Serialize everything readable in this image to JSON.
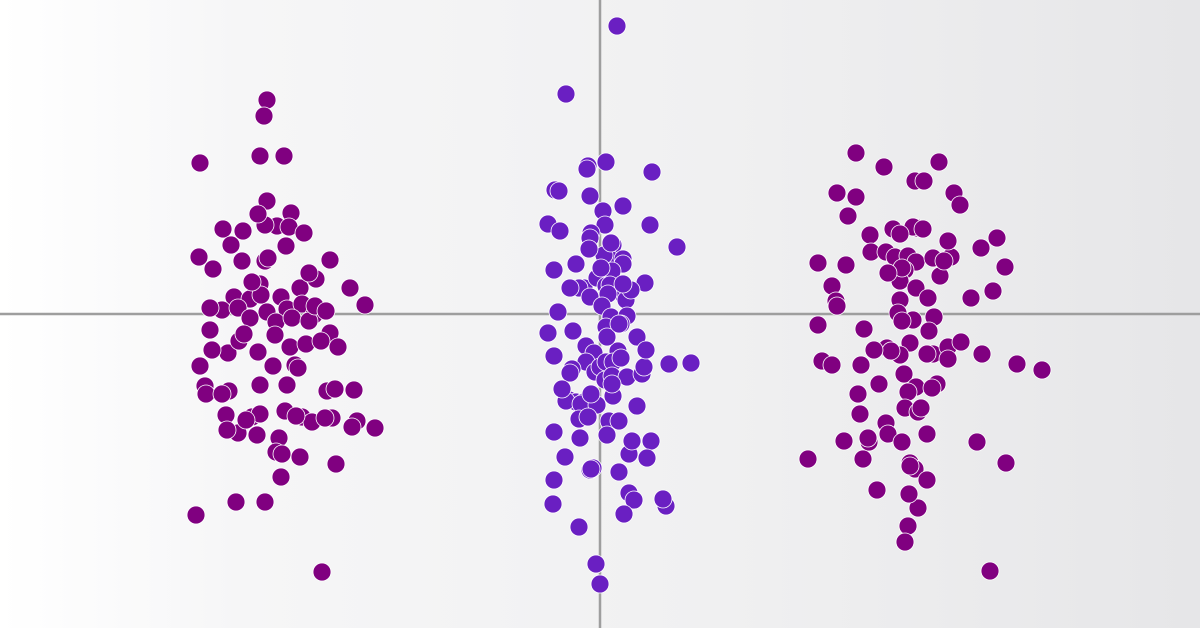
{
  "chart_data": {
    "type": "scatter",
    "title": "",
    "xlabel": "",
    "ylabel": "",
    "xlim": [
      -6,
      6
    ],
    "ylim": [
      -3.14,
      3.14
    ],
    "grid": false,
    "legend": "none",
    "axes_cross_at": [
      0,
      0
    ],
    "series": [
      {
        "color": "#800080",
        "points": [
          [
            -3.33,
            2.14
          ],
          [
            -3.36,
            1.98
          ],
          [
            -3.4,
            1.58
          ],
          [
            -3.16,
            1.58
          ],
          [
            -4.0,
            1.51
          ],
          [
            -3.33,
            1.13
          ],
          [
            -3.09,
            1.01
          ],
          [
            -3.23,
            0.88
          ],
          [
            -3.77,
            0.85
          ],
          [
            -3.57,
            0.83
          ],
          [
            -3.11,
            0.87
          ],
          [
            -2.96,
            0.81
          ],
          [
            -4.01,
            0.57
          ],
          [
            -3.87,
            0.45
          ],
          [
            -3.58,
            0.53
          ],
          [
            -3.35,
            0.53
          ],
          [
            -3.32,
            0.56
          ],
          [
            -2.7,
            0.54
          ],
          [
            -2.84,
            0.35
          ],
          [
            -3.4,
            0.3
          ],
          [
            -3.66,
            0.17
          ],
          [
            -3.5,
            0.15
          ],
          [
            -3.39,
            0.19
          ],
          [
            -3.19,
            0.17
          ],
          [
            -3.0,
            0.26
          ],
          [
            -2.5,
            0.26
          ],
          [
            -3.78,
            0.04
          ],
          [
            -3.62,
            0.06
          ],
          [
            -3.33,
            0.02
          ],
          [
            -3.13,
            0.05
          ],
          [
            -2.98,
            0.1
          ],
          [
            -2.86,
            -0.01
          ],
          [
            -2.35,
            0.09
          ],
          [
            -3.9,
            0.06
          ],
          [
            -3.5,
            -0.04
          ],
          [
            -3.24,
            -0.08
          ],
          [
            -3.08,
            -0.04
          ],
          [
            -2.91,
            -0.07
          ],
          [
            -2.7,
            -0.19
          ],
          [
            -2.85,
            0.08
          ],
          [
            -3.72,
            -0.39
          ],
          [
            -3.61,
            -0.27
          ],
          [
            -3.42,
            -0.38
          ],
          [
            -3.25,
            -0.21
          ],
          [
            -3.1,
            -0.33
          ],
          [
            -2.94,
            -0.3
          ],
          [
            -2.79,
            -0.27
          ],
          [
            -3.56,
            -0.2
          ],
          [
            -3.88,
            -0.36
          ],
          [
            -2.62,
            -0.33
          ],
          [
            -4.0,
            -0.52
          ],
          [
            -3.95,
            -0.72
          ],
          [
            -3.71,
            -0.77
          ],
          [
            -3.4,
            -0.71
          ],
          [
            -3.13,
            -0.71
          ],
          [
            -2.73,
            -0.77
          ],
          [
            -2.46,
            -0.76
          ],
          [
            -3.05,
            -0.51
          ],
          [
            -3.27,
            -0.52
          ],
          [
            -3.94,
            -0.8
          ],
          [
            -3.74,
            -1.01
          ],
          [
            -3.48,
            -1.03
          ],
          [
            -3.15,
            -0.97
          ],
          [
            -2.98,
            -1.03
          ],
          [
            -2.88,
            -1.08
          ],
          [
            -2.68,
            -1.04
          ],
          [
            -2.43,
            -1.07
          ],
          [
            -2.25,
            -1.14
          ],
          [
            -2.48,
            -1.13
          ],
          [
            -3.4,
            -1.0
          ],
          [
            -3.62,
            -1.19
          ],
          [
            -3.43,
            -1.21
          ],
          [
            -3.21,
            -1.24
          ],
          [
            -3.24,
            -1.38
          ],
          [
            -3.0,
            -1.43
          ],
          [
            -2.64,
            -1.5
          ],
          [
            -3.18,
            -1.4
          ],
          [
            -3.73,
            -1.16
          ],
          [
            -3.04,
            -1.02
          ],
          [
            -3.54,
            -1.06
          ],
          [
            -3.35,
            -1.88
          ],
          [
            -3.64,
            -1.88
          ],
          [
            -4.04,
            -2.01
          ],
          [
            -2.78,
            -2.58
          ],
          [
            -3.19,
            -1.63
          ],
          [
            -2.75,
            -1.04
          ],
          [
            -3.35,
            0.89
          ],
          [
            -3.69,
            0.69
          ],
          [
            -2.91,
            0.41
          ],
          [
            -2.74,
            0.03
          ],
          [
            -3.48,
            0.32
          ],
          [
            -3.14,
            0.68
          ],
          [
            -3.9,
            -0.16
          ],
          [
            -3.42,
            1.0
          ],
          [
            -3.02,
            -0.54
          ],
          [
            -3.78,
            -0.8
          ],
          [
            -2.65,
            -0.75
          ]
        ]
      },
      {
        "color": "#6a1fc2",
        "points": [
          [
            0.17,
            2.88
          ],
          [
            -0.34,
            2.2
          ],
          [
            -0.12,
            1.48
          ],
          [
            -0.13,
            1.45
          ],
          [
            0.06,
            1.52
          ],
          [
            -0.45,
            1.24
          ],
          [
            -0.1,
            1.18
          ],
          [
            0.23,
            1.08
          ],
          [
            -0.52,
            0.9
          ],
          [
            -0.4,
            0.83
          ],
          [
            0.03,
            1.03
          ],
          [
            0.05,
            0.89
          ],
          [
            -0.09,
            0.81
          ],
          [
            -0.1,
            0.76
          ],
          [
            0.13,
            0.69
          ],
          [
            -0.24,
            0.5
          ],
          [
            -0.46,
            0.44
          ],
          [
            0.1,
            0.55
          ],
          [
            0.23,
            0.55
          ],
          [
            0.23,
            0.5
          ],
          [
            0.04,
            0.59
          ],
          [
            0.12,
            0.43
          ],
          [
            -0.16,
            0.26
          ],
          [
            -0.21,
            0.26
          ],
          [
            -0.3,
            0.26
          ],
          [
            -0.1,
            0.17
          ],
          [
            -0.03,
            0.36
          ],
          [
            0.06,
            0.28
          ],
          [
            0.1,
            0.29
          ],
          [
            0.24,
            0.18
          ],
          [
            0.26,
            0.14
          ],
          [
            0.45,
            0.31
          ],
          [
            -0.42,
            0.02
          ],
          [
            0.08,
            0.2
          ],
          [
            0.02,
            0.08
          ],
          [
            0.11,
            -0.03
          ],
          [
            0.27,
            -0.02
          ],
          [
            0.06,
            -0.13
          ],
          [
            0.21,
            -0.1
          ],
          [
            -0.27,
            -0.17
          ],
          [
            0.37,
            -0.23
          ],
          [
            -0.46,
            -0.42
          ],
          [
            -0.14,
            -0.32
          ],
          [
            0.18,
            -0.37
          ],
          [
            0.07,
            -0.23
          ],
          [
            -0.06,
            -0.39
          ],
          [
            -0.14,
            -0.48
          ],
          [
            -0.28,
            -0.55
          ],
          [
            -0.3,
            -0.59
          ],
          [
            -0.05,
            -0.58
          ],
          [
            -0.0,
            -0.53
          ],
          [
            0.06,
            -0.48
          ],
          [
            0.13,
            -0.48
          ],
          [
            0.21,
            -0.44
          ],
          [
            -0.31,
            -0.86
          ],
          [
            -0.24,
            -0.88
          ],
          [
            -0.34,
            -0.87
          ],
          [
            -0.16,
            -0.88
          ],
          [
            0.05,
            -0.66
          ],
          [
            0.12,
            -0.62
          ],
          [
            0.27,
            -0.63
          ],
          [
            0.42,
            -0.6
          ],
          [
            -0.19,
            -0.9
          ],
          [
            -0.03,
            -0.91
          ],
          [
            0.13,
            -0.82
          ],
          [
            -0.21,
            -1.05
          ],
          [
            -0.12,
            -1.03
          ],
          [
            0.09,
            -1.07
          ],
          [
            0.19,
            -1.07
          ],
          [
            -0.46,
            -1.18
          ],
          [
            0.07,
            -1.21
          ],
          [
            0.29,
            -1.4
          ],
          [
            0.32,
            -1.27
          ],
          [
            0.51,
            -1.27
          ],
          [
            0.47,
            -1.44
          ],
          [
            -0.1,
            -1.56
          ],
          [
            -0.07,
            -1.54
          ],
          [
            0.29,
            -1.79
          ],
          [
            0.19,
            -1.58
          ],
          [
            -0.46,
            -1.66
          ],
          [
            -0.35,
            -1.43
          ],
          [
            -0.2,
            -1.24
          ],
          [
            0.34,
            -1.86
          ],
          [
            0.66,
            -1.92
          ],
          [
            0.37,
            -0.92
          ],
          [
            0.44,
            -0.53
          ],
          [
            0.01,
            0.46
          ],
          [
            0.31,
            0.24
          ],
          [
            -0.11,
            0.65
          ],
          [
            -0.38,
            -0.75
          ],
          [
            0.24,
            -2.0
          ],
          [
            0.63,
            -1.85
          ],
          [
            -0.21,
            -2.13
          ],
          [
            0.0,
            -2.7
          ],
          [
            -0.04,
            -2.5
          ],
          [
            -0.47,
            -1.9
          ],
          [
            0.91,
            -0.49
          ],
          [
            0.5,
            0.89
          ],
          [
            0.23,
            0.3
          ],
          [
            0.69,
            -0.5
          ],
          [
            0.46,
            -0.36
          ],
          [
            0.77,
            0.67
          ],
          [
            0.19,
            -0.1
          ],
          [
            -0.41,
            1.23
          ],
          [
            0.12,
            -0.7
          ],
          [
            0.52,
            1.42
          ],
          [
            -0.52,
            -0.19
          ],
          [
            -0.09,
            -1.55
          ],
          [
            0.11,
            0.71
          ],
          [
            -0.09,
            -0.8
          ]
        ]
      },
      {
        "color": "#800080",
        "points": [
          [
            2.56,
            1.61
          ],
          [
            3.39,
            1.52
          ],
          [
            2.84,
            1.47
          ],
          [
            3.15,
            1.33
          ],
          [
            3.24,
            1.33
          ],
          [
            2.37,
            1.21
          ],
          [
            2.56,
            1.17
          ],
          [
            3.54,
            1.21
          ],
          [
            2.48,
            0.98
          ],
          [
            2.7,
            0.79
          ],
          [
            3.17,
            0.86
          ],
          [
            3.97,
            0.76
          ],
          [
            3.13,
            0.87
          ],
          [
            2.93,
            0.85
          ],
          [
            3.81,
            0.66
          ],
          [
            3.23,
            0.85
          ],
          [
            3.0,
            0.8
          ],
          [
            2.71,
            0.62
          ],
          [
            2.86,
            0.62
          ],
          [
            2.95,
            0.57
          ],
          [
            3.08,
            0.58
          ],
          [
            3.16,
            0.52
          ],
          [
            3.33,
            0.56
          ],
          [
            3.51,
            0.57
          ],
          [
            3.4,
            0.38
          ],
          [
            3.05,
            0.44
          ],
          [
            3.0,
            0.33
          ],
          [
            2.46,
            0.49
          ],
          [
            2.18,
            0.51
          ],
          [
            2.32,
            0.28
          ],
          [
            3.48,
            0.73
          ],
          [
            3.44,
            0.53
          ],
          [
            3.02,
            0.46
          ],
          [
            4.05,
            0.47
          ],
          [
            3.93,
            0.23
          ],
          [
            3.16,
            0.26
          ],
          [
            3.28,
            0.16
          ],
          [
            3.0,
            0.14
          ],
          [
            3.71,
            0.16
          ],
          [
            2.36,
            0.13
          ],
          [
            2.18,
            -0.11
          ],
          [
            2.37,
            0.08
          ],
          [
            2.64,
            -0.15
          ],
          [
            3.34,
            -0.03
          ],
          [
            3.13,
            -0.06
          ],
          [
            2.98,
            0.01
          ],
          [
            3.02,
            -0.07
          ],
          [
            3.29,
            -0.17
          ],
          [
            3.1,
            -0.29
          ],
          [
            3.33,
            -0.4
          ],
          [
            2.87,
            -0.34
          ],
          [
            3.27,
            -0.4
          ],
          [
            3.48,
            -0.33
          ],
          [
            3.61,
            -0.28
          ],
          [
            3.82,
            -0.4
          ],
          [
            3.0,
            -0.41
          ],
          [
            2.91,
            -0.37
          ],
          [
            2.74,
            -0.36
          ],
          [
            2.61,
            -0.51
          ],
          [
            2.79,
            -0.7
          ],
          [
            2.22,
            -0.47
          ],
          [
            2.32,
            -0.51
          ],
          [
            3.04,
            -0.6
          ],
          [
            3.16,
            -0.73
          ],
          [
            3.37,
            -0.7
          ],
          [
            2.58,
            -0.8
          ],
          [
            3.08,
            -0.78
          ],
          [
            4.42,
            -0.56
          ],
          [
            4.17,
            -0.5
          ],
          [
            3.05,
            -0.94
          ],
          [
            2.6,
            -1.0
          ],
          [
            3.18,
            -0.98
          ],
          [
            3.21,
            -0.94
          ],
          [
            2.86,
            -1.09
          ],
          [
            2.88,
            -1.2
          ],
          [
            3.27,
            -1.2
          ],
          [
            2.69,
            -1.28
          ],
          [
            2.68,
            -1.24
          ],
          [
            3.02,
            -1.28
          ],
          [
            2.63,
            -1.45
          ],
          [
            2.44,
            -1.27
          ],
          [
            3.1,
            -1.49
          ],
          [
            3.15,
            -1.55
          ],
          [
            3.77,
            -1.28
          ],
          [
            3.27,
            -1.66
          ],
          [
            3.18,
            -1.94
          ],
          [
            3.09,
            -1.8
          ],
          [
            3.1,
            -1.52
          ],
          [
            2.77,
            -1.76
          ],
          [
            3.08,
            -2.12
          ],
          [
            3.05,
            -2.28
          ],
          [
            3.9,
            -2.57
          ],
          [
            4.06,
            -1.49
          ],
          [
            2.08,
            -1.45
          ],
          [
            3.48,
            -0.45
          ],
          [
            3.32,
            -0.74
          ],
          [
            2.88,
            0.41
          ],
          [
            3.6,
            1.09
          ]
        ]
      }
    ]
  }
}
